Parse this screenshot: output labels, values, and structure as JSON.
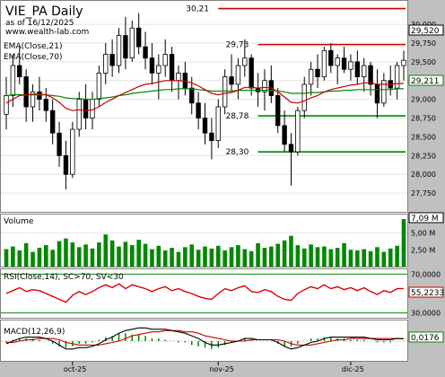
{
  "header": {
    "title": "VIE_PA Daily",
    "asof": "as of 16/12/2025",
    "site": "www.wealth-lab.com"
  },
  "x_axis": {
    "labels": [
      "oct-25",
      "nov-25",
      "dic-25"
    ]
  },
  "colors": {
    "up": "#ffffff",
    "down": "#000000",
    "wick": "#000000",
    "ema21": "#cc0000",
    "ema70": "#008800",
    "resist": "#cc0000",
    "support": "#008800",
    "volume": "#008800",
    "rsi": "#dd0000",
    "rsi_band": "#008800",
    "macd": "#000000",
    "signal": "#cc0000",
    "hist": "#008800",
    "axis_bg": "#c0c0c0",
    "label_red": "#cc0000",
    "label_green": "#008800"
  },
  "chart_data": [
    {
      "type": "candlestick",
      "title": "VIE_PA Daily",
      "ylim": [
        27500,
        30300
      ],
      "y_ticks": [
        "27,750",
        "28,000",
        "28,250",
        "28,500",
        "28,750",
        "29,000",
        "29,250",
        "29,500",
        "29,750",
        "30,000"
      ],
      "legend": [
        "EMA(Close,21)",
        "EMA(Close,70)"
      ],
      "last_price_label": "29,520",
      "ema_label": "29,211",
      "levels": [
        {
          "value": 30.21,
          "label": "30,21",
          "color": "resist",
          "start": 32,
          "end": 62
        },
        {
          "value": 29.73,
          "label": "29,73",
          "color": "resist",
          "start": 38,
          "end": 62
        },
        {
          "value": 28.78,
          "label": "28,78",
          "color": "support",
          "start": 38,
          "end": 62
        },
        {
          "value": 28.3,
          "label": "28,30",
          "color": "support",
          "start": 38,
          "end": 62
        }
      ],
      "candles": [
        [
          28.8,
          29.3,
          28.6,
          29.05
        ],
        [
          29.05,
          29.6,
          28.9,
          29.45
        ],
        [
          29.45,
          29.7,
          29.2,
          29.3
        ],
        [
          29.3,
          29.4,
          28.7,
          28.9
        ],
        [
          28.9,
          29.2,
          28.7,
          29.1
        ],
        [
          29.1,
          29.3,
          28.85,
          29.0
        ],
        [
          29.0,
          29.15,
          28.7,
          28.85
        ],
        [
          28.85,
          29.0,
          28.4,
          28.55
        ],
        [
          28.55,
          28.7,
          28.1,
          28.25
        ],
        [
          28.25,
          28.45,
          27.8,
          28.0
        ],
        [
          28.0,
          28.7,
          27.95,
          28.6
        ],
        [
          28.6,
          29.1,
          28.5,
          29.0
        ],
        [
          29.0,
          29.2,
          28.6,
          28.75
        ],
        [
          28.75,
          29.1,
          28.6,
          29.0
        ],
        [
          29.0,
          29.45,
          28.9,
          29.35
        ],
        [
          29.35,
          29.75,
          29.2,
          29.6
        ],
        [
          29.6,
          29.8,
          29.3,
          29.45
        ],
        [
          29.45,
          29.95,
          29.35,
          29.85
        ],
        [
          29.85,
          30.1,
          29.4,
          29.55
        ],
        [
          29.55,
          30.05,
          29.5,
          29.95
        ],
        [
          29.95,
          30.15,
          29.6,
          29.7
        ],
        [
          29.7,
          29.9,
          29.4,
          29.55
        ],
        [
          29.55,
          29.75,
          29.2,
          29.35
        ],
        [
          29.35,
          29.6,
          29.0,
          29.45
        ],
        [
          29.45,
          29.8,
          29.3,
          29.6
        ],
        [
          29.6,
          29.7,
          29.1,
          29.25
        ],
        [
          29.25,
          29.45,
          29.0,
          29.35
        ],
        [
          29.35,
          29.5,
          29.05,
          29.15
        ],
        [
          29.15,
          29.3,
          28.8,
          28.95
        ],
        [
          28.95,
          29.1,
          28.6,
          28.75
        ],
        [
          28.75,
          28.95,
          28.4,
          28.55
        ],
        [
          28.55,
          28.75,
          28.2,
          28.45
        ],
        [
          28.45,
          29.0,
          28.35,
          28.9
        ],
        [
          28.9,
          29.4,
          28.8,
          29.3
        ],
        [
          29.3,
          29.6,
          29.1,
          29.2
        ],
        [
          29.2,
          29.55,
          29.0,
          29.45
        ],
        [
          29.45,
          29.8,
          29.3,
          29.55
        ],
        [
          29.55,
          29.6,
          29.05,
          29.15
        ],
        [
          29.15,
          29.35,
          28.9,
          29.1
        ],
        [
          29.1,
          29.4,
          28.85,
          29.25
        ],
        [
          29.25,
          29.45,
          28.95,
          29.05
        ],
        [
          29.05,
          29.15,
          28.55,
          28.65
        ],
        [
          28.65,
          28.85,
          28.3,
          28.4
        ],
        [
          28.4,
          28.55,
          27.85,
          28.3
        ],
        [
          28.3,
          28.9,
          28.25,
          28.85
        ],
        [
          28.85,
          29.3,
          28.75,
          29.2
        ],
        [
          29.2,
          29.5,
          29.05,
          29.4
        ],
        [
          29.4,
          29.6,
          29.15,
          29.3
        ],
        [
          29.3,
          29.7,
          29.25,
          29.65
        ],
        [
          29.65,
          29.75,
          29.35,
          29.45
        ],
        [
          29.45,
          29.6,
          29.2,
          29.55
        ],
        [
          29.55,
          29.7,
          29.35,
          29.4
        ],
        [
          29.4,
          29.6,
          29.25,
          29.5
        ],
        [
          29.5,
          29.65,
          29.2,
          29.3
        ],
        [
          29.3,
          29.55,
          29.1,
          29.45
        ],
        [
          29.45,
          29.5,
          29.05,
          29.2
        ],
        [
          29.2,
          29.4,
          28.75,
          28.95
        ],
        [
          28.95,
          29.35,
          28.9,
          29.25
        ],
        [
          29.25,
          29.45,
          29.05,
          29.15
        ],
        [
          29.15,
          29.5,
          29.0,
          29.45
        ],
        [
          29.45,
          29.65,
          29.25,
          29.52
        ]
      ],
      "ema21": [
        28.95,
        29.0,
        29.05,
        29.06,
        29.07,
        29.07,
        29.06,
        29.02,
        28.96,
        28.88,
        28.85,
        28.86,
        28.85,
        28.86,
        28.9,
        28.96,
        29.0,
        29.05,
        29.09,
        29.13,
        29.17,
        29.2,
        29.21,
        29.23,
        29.25,
        29.25,
        29.25,
        29.24,
        29.22,
        29.18,
        29.13,
        29.08,
        29.06,
        29.08,
        29.09,
        29.12,
        29.16,
        29.16,
        29.15,
        29.16,
        29.15,
        29.1,
        29.03,
        28.96,
        28.95,
        28.98,
        29.02,
        29.05,
        29.1,
        29.13,
        29.15,
        29.17,
        29.19,
        29.2,
        29.22,
        29.22,
        29.2,
        29.2,
        29.2,
        29.21,
        29.211
      ],
      "ema70": [
        29.05,
        29.06,
        29.06,
        29.06,
        29.06,
        29.06,
        29.06,
        29.05,
        29.04,
        29.02,
        29.01,
        29.01,
        29.0,
        29.0,
        29.01,
        29.02,
        29.03,
        29.05,
        29.06,
        29.08,
        29.09,
        29.1,
        29.11,
        29.12,
        29.13,
        29.13,
        29.14,
        29.14,
        29.14,
        29.13,
        29.12,
        29.11,
        29.11,
        29.11,
        29.11,
        29.12,
        29.12,
        29.12,
        29.12,
        29.12,
        29.12,
        29.11,
        29.1,
        29.08,
        29.08,
        29.08,
        29.09,
        29.09,
        29.1,
        29.11,
        29.11,
        29.12,
        29.12,
        29.13,
        29.13,
        29.13,
        29.13,
        29.13,
        29.13,
        29.14,
        29.14
      ]
    },
    {
      "type": "bar",
      "name": "Volume",
      "ylim": [
        0,
        7.5
      ],
      "y_ticks": [
        "2,50 M",
        "5,00 M"
      ],
      "last_label": "7,09 M",
      "values": [
        2.6,
        3.0,
        2.4,
        3.5,
        2.2,
        2.8,
        3.2,
        2.5,
        3.8,
        4.2,
        3.6,
        2.9,
        3.3,
        2.7,
        3.6,
        4.8,
        3.9,
        3.0,
        3.7,
        3.2,
        4.0,
        3.4,
        2.6,
        3.1,
        2.4,
        2.8,
        2.2,
        2.9,
        3.3,
        2.5,
        3.0,
        2.7,
        3.1,
        2.4,
        2.9,
        3.2,
        2.6,
        2.3,
        3.5,
        2.8,
        3.0,
        3.4,
        3.9,
        4.6,
        3.2,
        2.7,
        3.3,
        2.9,
        3.0,
        2.6,
        2.8,
        3.5,
        2.5,
        2.4,
        2.6,
        2.3,
        2.9,
        2.2,
        2.7,
        3.1,
        7.09
      ]
    },
    {
      "type": "line",
      "name": "RSI(Close,14), SC>70, SV<30",
      "ylim": [
        25,
        75
      ],
      "y_ticks": [
        "30,0000",
        "70,0000"
      ],
      "last_label": "55,2233",
      "values": [
        50,
        53,
        56,
        52,
        54,
        53,
        50,
        47,
        44,
        41,
        48,
        52,
        49,
        52,
        56,
        59,
        56,
        60,
        55,
        59,
        57,
        55,
        52,
        55,
        57,
        53,
        55,
        52,
        50,
        47,
        45,
        44,
        50,
        55,
        53,
        56,
        58,
        52,
        51,
        54,
        52,
        47,
        44,
        43,
        50,
        54,
        57,
        55,
        59,
        55,
        57,
        54,
        56,
        53,
        56,
        52,
        49,
        53,
        51,
        55,
        55.2233
      ]
    },
    {
      "type": "line",
      "name": "MACD(12,26,9)",
      "ylim": [
        -0.15,
        0.15
      ],
      "last_label": "0,0176",
      "macd": [
        -0.02,
        0.0,
        0.02,
        0.03,
        0.03,
        0.03,
        0.02,
        0.0,
        -0.03,
        -0.06,
        -0.06,
        -0.05,
        -0.05,
        -0.04,
        -0.02,
        0.01,
        0.03,
        0.06,
        0.08,
        0.09,
        0.1,
        0.1,
        0.09,
        0.09,
        0.09,
        0.08,
        0.07,
        0.06,
        0.04,
        0.02,
        -0.01,
        -0.03,
        -0.03,
        -0.02,
        -0.01,
        0.0,
        0.02,
        0.02,
        0.01,
        0.01,
        0.01,
        -0.01,
        -0.04,
        -0.06,
        -0.05,
        -0.03,
        -0.01,
        0.0,
        0.02,
        0.03,
        0.03,
        0.03,
        0.03,
        0.03,
        0.03,
        0.02,
        0.01,
        0.01,
        0.01,
        0.02,
        0.0176
      ],
      "signal": [
        -0.01,
        -0.01,
        0.0,
        0.01,
        0.01,
        0.02,
        0.02,
        0.02,
        0.01,
        -0.01,
        -0.02,
        -0.03,
        -0.03,
        -0.03,
        -0.03,
        -0.02,
        -0.01,
        0.0,
        0.02,
        0.04,
        0.05,
        0.06,
        0.07,
        0.07,
        0.08,
        0.08,
        0.08,
        0.07,
        0.07,
        0.06,
        0.04,
        0.03,
        0.02,
        0.01,
        0.0,
        0.0,
        0.0,
        0.01,
        0.01,
        0.01,
        0.01,
        0.01,
        0.0,
        -0.02,
        -0.03,
        -0.03,
        -0.03,
        -0.02,
        -0.01,
        0.0,
        0.01,
        0.01,
        0.02,
        0.02,
        0.02,
        0.02,
        0.02,
        0.02,
        0.02,
        0.02,
        0.018
      ]
    }
  ]
}
